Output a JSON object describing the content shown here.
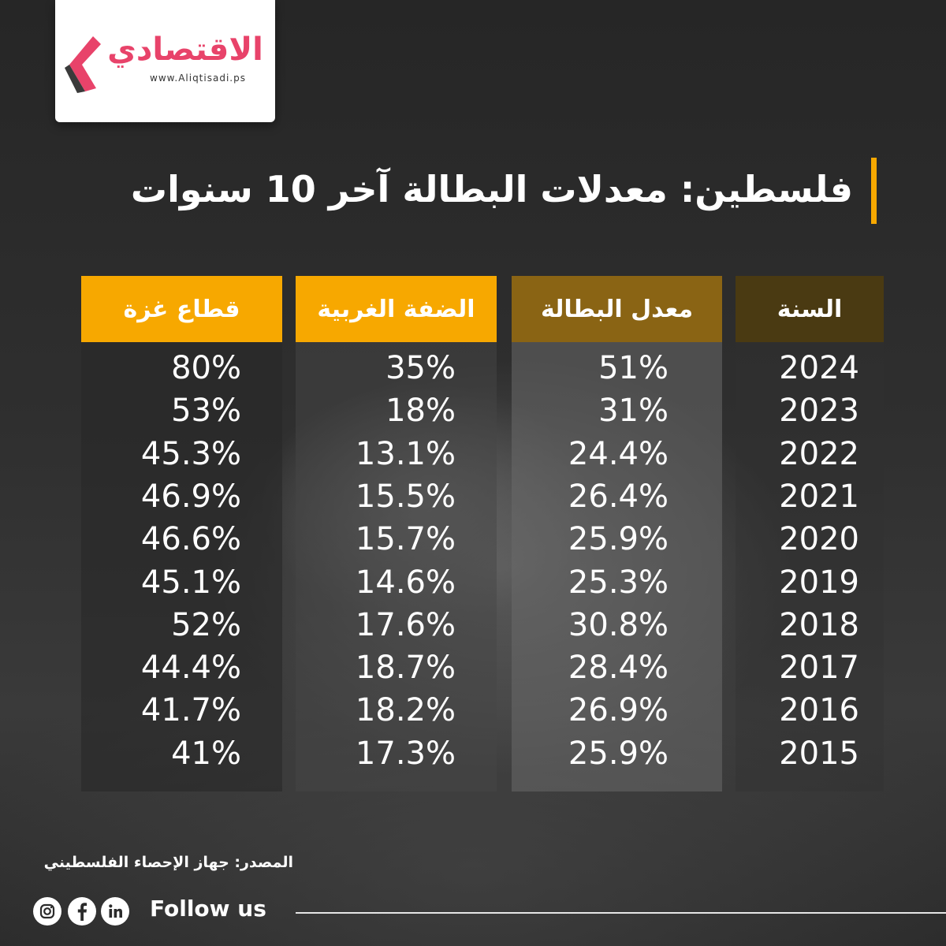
{
  "brand": {
    "name": "الاقتصادي",
    "url": "www.Aliqtisadi.ps",
    "color": "#e8436a"
  },
  "title": "فلسطين: معدلات البطالة آخر 10 سنوات",
  "colors": {
    "accent_bar": "#f7a800",
    "year_header": "#4a3a12",
    "rate_header": "#8a6414",
    "region_header": "#f7a800"
  },
  "chart_data": {
    "type": "table",
    "columns": [
      "السنة",
      "معدل البطالة",
      "الضفة الغربية",
      "قطاع غزة"
    ],
    "rows": [
      [
        "2024",
        "51%",
        "35%",
        "80%"
      ],
      [
        "2023",
        "31%",
        "18%",
        "53%"
      ],
      [
        "2022",
        "24.4%",
        "13.1%",
        "45.3%"
      ],
      [
        "2021",
        "26.4%",
        "15.5%",
        "46.9%"
      ],
      [
        "2020",
        "25.9%",
        "15.7%",
        "46.6%"
      ],
      [
        "2019",
        "25.3%",
        "14.6%",
        "45.1%"
      ],
      [
        "2018",
        "30.8%",
        "17.6%",
        "52%"
      ],
      [
        "2017",
        "28.4%",
        "18.7%",
        "44.4%"
      ],
      [
        "2016",
        "26.9%",
        "18.2%",
        "41.7%"
      ],
      [
        "2015",
        "25.9%",
        "17.3%",
        "41%"
      ]
    ]
  },
  "source": "المصدر: جهاز الإحصاء الفلسطيني",
  "footer": {
    "follow_label": "Follow us",
    "icons": [
      "instagram-icon",
      "facebook-icon",
      "linkedin-icon"
    ]
  }
}
